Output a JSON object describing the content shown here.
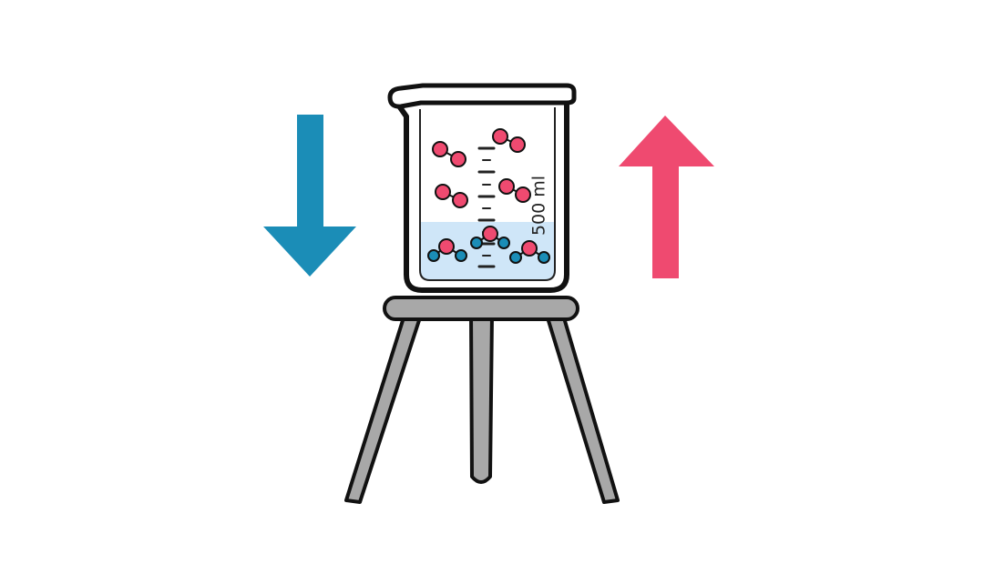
{
  "beaker": {
    "volume_label": "500 ml",
    "liquid_color": "#cfe6f8",
    "outline_color": "#111111"
  },
  "arrows": {
    "down": {
      "icon": "down-arrow-icon",
      "color": "#1b8db7"
    },
    "up": {
      "icon": "up-arrow-icon",
      "color": "#ef4a70"
    }
  },
  "molecules": {
    "gas_color": "#ef4a70",
    "liquid_color": "#1b8db7"
  },
  "stand": {
    "fill_color": "#a8a8a8",
    "outline_color": "#111111"
  }
}
